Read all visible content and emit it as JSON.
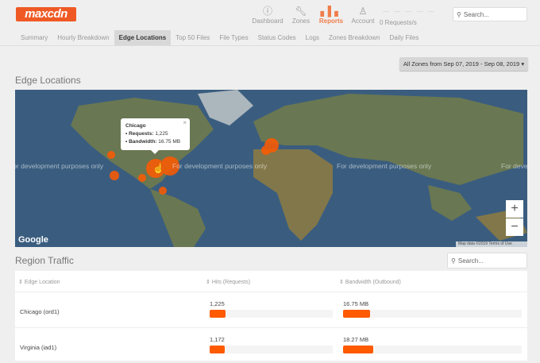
{
  "brand": {
    "logo": "maxcdn",
    "color": "#ef5a24"
  },
  "nav": [
    {
      "label": "Dashboard",
      "icon": "info-icon"
    },
    {
      "label": "Zones",
      "icon": "wrench-icon"
    },
    {
      "label": "Reports",
      "icon": "bar-chart-icon",
      "active": true
    },
    {
      "label": "Account",
      "icon": "user-icon"
    }
  ],
  "requests": "0 Requests/s",
  "search_placeholder": "Search...",
  "tabs": [
    "Summary",
    "Hourly Breakdown",
    "Edge Locations",
    "Top 50 Files",
    "File Types",
    "Status Codes",
    "Logs",
    "Zones Breakdown",
    "Daily Files"
  ],
  "active_tab": "Edge Locations",
  "date_range": "All Zones from Sep 07, 2019 - Sep 08, 2019 ▾",
  "map": {
    "title": "Edge Locations",
    "watermark": "For development purposes only",
    "google": "Google",
    "attribution": "Map data ©2019",
    "terms": "Terms of Use",
    "zoom_in": "+",
    "zoom_out": "−",
    "tooltip": {
      "city": "Chicago",
      "requests_label": "• Requests:",
      "requests": "1,225",
      "bandwidth_label": "• Bandwidth:",
      "bandwidth": "16.75 MB",
      "close": "×"
    },
    "bubble_color": "#ff5a00"
  },
  "region": {
    "title": "Region Traffic",
    "search_placeholder": "Search...",
    "columns": [
      "Edge Location",
      "Hits (Requests)",
      "Bandwidth (Outbound)"
    ],
    "rows": [
      {
        "location": "Chicago (ord1)",
        "hits": "1,225",
        "hits_pct": 13,
        "bandwidth": "16.75 MB",
        "bw_pct": 15
      },
      {
        "location": "Virginia (iad1)",
        "hits": "1,172",
        "hits_pct": 12.5,
        "bandwidth": "18.27 MB",
        "bw_pct": 17
      }
    ]
  }
}
